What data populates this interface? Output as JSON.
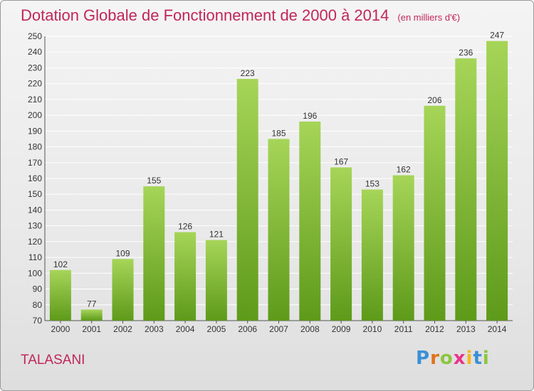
{
  "title": "Dotation Globale de Fonctionnement de 2000 à 2014",
  "subtitle": "(en milliers d'€)",
  "commune": "TALASANI",
  "logo": {
    "text": "Proxiti",
    "letters": [
      "P",
      "r",
      "o",
      "x",
      "i",
      "t",
      "i"
    ]
  },
  "colors": {
    "title": "#c0265b",
    "bar_top": "#a6d558",
    "bar_bottom": "#5e9a1a",
    "grid": "#ffffff"
  },
  "chart_data": {
    "type": "bar",
    "categories": [
      "2000",
      "2001",
      "2002",
      "2003",
      "2004",
      "2005",
      "2006",
      "2007",
      "2008",
      "2009",
      "2010",
      "2011",
      "2012",
      "2013",
      "2014"
    ],
    "values": [
      102,
      77,
      109,
      155,
      126,
      121,
      223,
      185,
      196,
      167,
      153,
      162,
      206,
      236,
      247
    ],
    "data_labels": [
      "102",
      "77",
      "109",
      "155",
      "126",
      "121",
      "223",
      "185",
      "196",
      "167",
      "153",
      "162",
      "206",
      "236",
      "247"
    ],
    "ylim": [
      70,
      250
    ],
    "yticks": [
      70,
      80,
      90,
      100,
      110,
      120,
      130,
      140,
      150,
      160,
      170,
      180,
      190,
      200,
      210,
      220,
      230,
      240,
      250
    ],
    "ytick_labels": [
      "70",
      "80",
      "90",
      "100",
      "110",
      "120",
      "130",
      "140",
      "150",
      "160",
      "170",
      "180",
      "190",
      "200",
      "210",
      "220",
      "230",
      "240",
      "250"
    ],
    "grid": true,
    "xlabel": "",
    "ylabel": ""
  }
}
